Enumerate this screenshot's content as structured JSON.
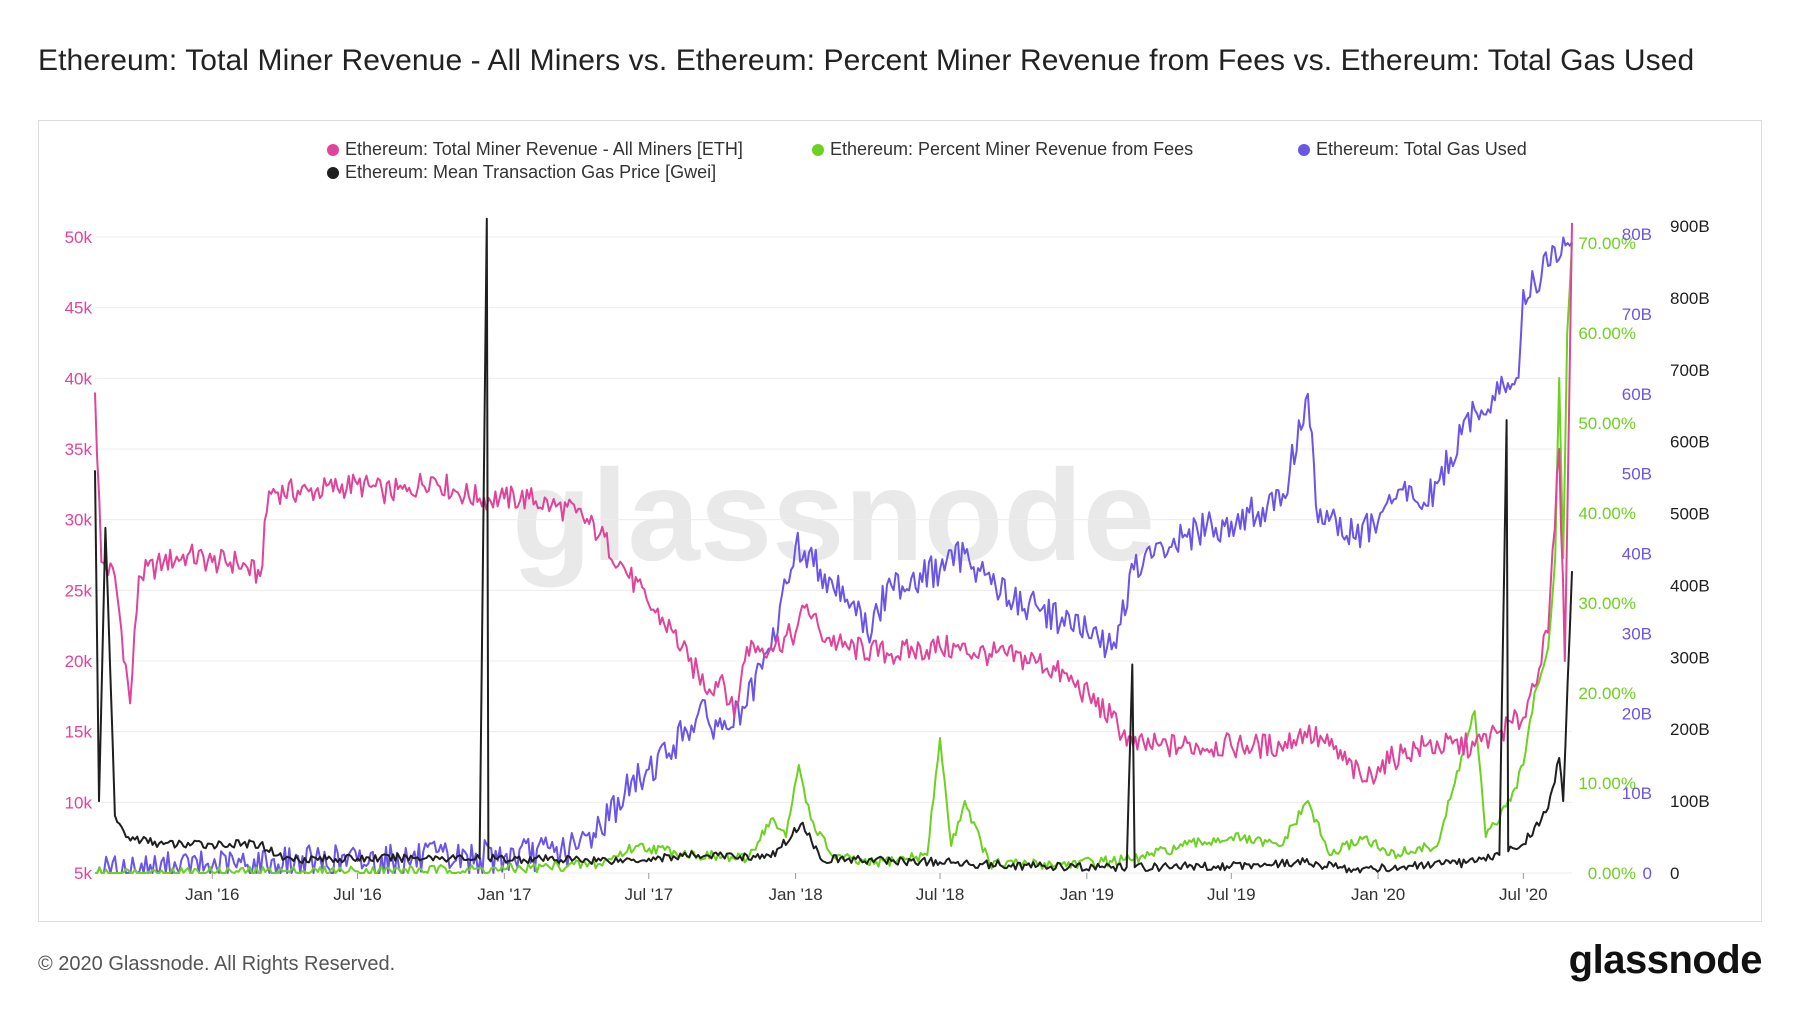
{
  "title": "Ethereum: Total Miner Revenue - All Miners vs. Ethereum: Percent Miner Revenue from Fees vs. Ethereum: Total Gas Used",
  "footer": {
    "copyright": "© 2020 Glassnode. All Rights Reserved.",
    "logo": "glassnode"
  },
  "watermark": "glassnode",
  "colors": {
    "revenue": "#e0449a",
    "fees": "#6cd11f",
    "gas_used": "#6a55e8",
    "gas_price": "#1f1f1f",
    "grid": "#ececec"
  },
  "chart_data": {
    "type": "line",
    "x_ticks": [
      "Jan '16",
      "Jul '16",
      "Jan '17",
      "Jul '17",
      "Jan '18",
      "Jul '18",
      "Jan '19",
      "Jul '19",
      "Jan '20",
      "Jul '20"
    ],
    "x_range": [
      "2015-08-07",
      "2020-08-31"
    ],
    "axes": {
      "revenue": {
        "ticks": [
          "5k",
          "10k",
          "15k",
          "20k",
          "25k",
          "30k",
          "35k",
          "40k",
          "45k",
          "50k"
        ],
        "ylim": [
          5000,
          50000
        ]
      },
      "fees": {
        "ticks": [
          "0.00%",
          "10.00%",
          "20.00%",
          "30.00%",
          "40.00%",
          "50.00%",
          "60.00%",
          "70.00%"
        ],
        "ylim": [
          0,
          70
        ]
      },
      "gas_used": {
        "ticks": [
          "0",
          "10B",
          "20B",
          "30B",
          "40B",
          "50B",
          "60B",
          "70B",
          "80B"
        ],
        "ylim": [
          0,
          80
        ]
      },
      "gas_price": {
        "ticks": [
          "0",
          "100B",
          "200B",
          "300B",
          "400B",
          "500B",
          "600B",
          "700B",
          "800B",
          "900B"
        ],
        "ylim": [
          0,
          900
        ]
      }
    },
    "series": [
      {
        "name": "Ethereum: Total Miner Revenue - All Miners [ETH]",
        "axis": "revenue",
        "points": [
          [
            "2015-08-07",
            39000
          ],
          [
            "2015-08-15",
            27000
          ],
          [
            "2015-09-01",
            26000
          ],
          [
            "2015-09-20",
            17000
          ],
          [
            "2015-10-01",
            26000
          ],
          [
            "2015-11-01",
            27000
          ],
          [
            "2015-12-01",
            27500
          ],
          [
            "2016-01-01",
            27000
          ],
          [
            "2016-02-01",
            27000
          ],
          [
            "2016-03-01",
            26000
          ],
          [
            "2016-03-12",
            32000
          ],
          [
            "2016-05-01",
            32000
          ],
          [
            "2016-07-01",
            32500
          ],
          [
            "2016-08-01",
            32000
          ],
          [
            "2016-09-01",
            32000
          ],
          [
            "2016-10-01",
            33000
          ],
          [
            "2016-11-01",
            32000
          ],
          [
            "2016-12-01",
            31500
          ],
          [
            "2017-01-01",
            31500
          ],
          [
            "2017-02-01",
            31500
          ],
          [
            "2017-03-01",
            31000
          ],
          [
            "2017-04-01",
            30500
          ],
          [
            "2017-05-01",
            29000
          ],
          [
            "2017-06-01",
            26500
          ],
          [
            "2017-07-01",
            24000
          ],
          [
            "2017-08-01",
            22000
          ],
          [
            "2017-08-20",
            20000
          ],
          [
            "2017-09-15",
            18000
          ],
          [
            "2017-10-01",
            19000
          ],
          [
            "2017-10-16",
            16000
          ],
          [
            "2017-11-01",
            21000
          ],
          [
            "2017-12-01",
            21000
          ],
          [
            "2018-01-01",
            22000
          ],
          [
            "2018-01-15",
            24000
          ],
          [
            "2018-02-01",
            22000
          ],
          [
            "2018-03-01",
            21000
          ],
          [
            "2018-05-01",
            20500
          ],
          [
            "2018-07-01",
            21000
          ],
          [
            "2018-09-01",
            20500
          ],
          [
            "2018-11-01",
            20000
          ],
          [
            "2018-12-15",
            18500
          ],
          [
            "2019-02-01",
            16000
          ],
          [
            "2019-02-28",
            14000
          ],
          [
            "2019-04-01",
            14000
          ],
          [
            "2019-07-01",
            14000
          ],
          [
            "2019-09-01",
            14000
          ],
          [
            "2019-10-01",
            15000
          ],
          [
            "2019-11-01",
            14000
          ],
          [
            "2019-12-15",
            11500
          ],
          [
            "2020-01-01",
            12500
          ],
          [
            "2020-02-01",
            13500
          ],
          [
            "2020-03-01",
            14000
          ],
          [
            "2020-05-01",
            14000
          ],
          [
            "2020-06-01",
            15000
          ],
          [
            "2020-07-01",
            16000
          ],
          [
            "2020-08-01",
            22000
          ],
          [
            "2020-08-15",
            35000
          ],
          [
            "2020-08-22",
            20000
          ],
          [
            "2020-08-31",
            51000
          ]
        ]
      },
      {
        "name": "Ethereum: Percent Miner Revenue from Fees",
        "axis": "fees",
        "points": [
          [
            "2015-08-07",
            0
          ],
          [
            "2016-01-01",
            0.1
          ],
          [
            "2016-07-01",
            0.2
          ],
          [
            "2017-01-01",
            0.4
          ],
          [
            "2017-05-01",
            1
          ],
          [
            "2017-06-15",
            3
          ],
          [
            "2017-09-01",
            2
          ],
          [
            "2017-11-01",
            1.5
          ],
          [
            "2017-12-01",
            6
          ],
          [
            "2017-12-20",
            4
          ],
          [
            "2018-01-05",
            12
          ],
          [
            "2018-01-20",
            6
          ],
          [
            "2018-02-15",
            2
          ],
          [
            "2018-04-01",
            1
          ],
          [
            "2018-06-15",
            2
          ],
          [
            "2018-07-01",
            15
          ],
          [
            "2018-07-15",
            3
          ],
          [
            "2018-08-01",
            8
          ],
          [
            "2018-09-01",
            1
          ],
          [
            "2018-12-01",
            1
          ],
          [
            "2019-03-01",
            1.5
          ],
          [
            "2019-05-01",
            3
          ],
          [
            "2019-07-01",
            4
          ],
          [
            "2019-09-01",
            3
          ],
          [
            "2019-10-05",
            8
          ],
          [
            "2019-11-01",
            2
          ],
          [
            "2019-12-15",
            4
          ],
          [
            "2020-01-15",
            2
          ],
          [
            "2020-03-15",
            3
          ],
          [
            "2020-05-01",
            18
          ],
          [
            "2020-05-15",
            4
          ],
          [
            "2020-06-15",
            8
          ],
          [
            "2020-07-01",
            12
          ],
          [
            "2020-07-15",
            20
          ],
          [
            "2020-08-01",
            25
          ],
          [
            "2020-08-10",
            35
          ],
          [
            "2020-08-15",
            55
          ],
          [
            "2020-08-20",
            35
          ],
          [
            "2020-08-25",
            60
          ],
          [
            "2020-08-31",
            70
          ]
        ]
      },
      {
        "name": "Ethereum: Total Gas Used",
        "axis": "gas_used",
        "points": [
          [
            "2015-08-07",
            0
          ],
          [
            "2016-01-01",
            0.8
          ],
          [
            "2016-07-01",
            1.5
          ],
          [
            "2017-01-01",
            2
          ],
          [
            "2017-04-01",
            3
          ],
          [
            "2017-05-01",
            6
          ],
          [
            "2017-06-01",
            10
          ],
          [
            "2017-07-01",
            13
          ],
          [
            "2017-08-01",
            16
          ],
          [
            "2017-09-01",
            20
          ],
          [
            "2017-10-01",
            18
          ],
          [
            "2017-11-01",
            21
          ],
          [
            "2017-12-01",
            28
          ],
          [
            "2018-01-01",
            41
          ],
          [
            "2018-02-01",
            38
          ],
          [
            "2018-03-15",
            34
          ],
          [
            "2018-04-01",
            30
          ],
          [
            "2018-05-01",
            36
          ],
          [
            "2018-07-01",
            38
          ],
          [
            "2018-08-01",
            40
          ],
          [
            "2018-10-01",
            34
          ],
          [
            "2018-12-01",
            32
          ],
          [
            "2019-02-01",
            28
          ],
          [
            "2019-03-01",
            38
          ],
          [
            "2019-05-01",
            42
          ],
          [
            "2019-07-01",
            44
          ],
          [
            "2019-09-01",
            46
          ],
          [
            "2019-10-05",
            60
          ],
          [
            "2019-10-15",
            46
          ],
          [
            "2019-12-01",
            42
          ],
          [
            "2020-01-01",
            44
          ],
          [
            "2020-02-01",
            48
          ],
          [
            "2020-03-01",
            46
          ],
          [
            "2020-04-01",
            52
          ],
          [
            "2020-05-01",
            58
          ],
          [
            "2020-06-01",
            60
          ],
          [
            "2020-06-25",
            62
          ],
          [
            "2020-07-01",
            73
          ],
          [
            "2020-08-01",
            76
          ],
          [
            "2020-08-31",
            79
          ]
        ]
      },
      {
        "name": "Ethereum: Mean Transaction Gas Price [Gwei]",
        "axis": "gas_price",
        "points": [
          [
            "2015-08-07",
            560
          ],
          [
            "2015-08-12",
            100
          ],
          [
            "2015-08-20",
            480
          ],
          [
            "2015-09-01",
            80
          ],
          [
            "2015-09-15",
            50
          ],
          [
            "2015-11-01",
            40
          ],
          [
            "2016-01-01",
            40
          ],
          [
            "2016-03-01",
            40
          ],
          [
            "2016-04-01",
            20
          ],
          [
            "2016-07-01",
            20
          ],
          [
            "2016-10-01",
            22
          ],
          [
            "2016-12-01",
            20
          ],
          [
            "2016-12-10",
            910
          ],
          [
            "2016-12-12",
            20
          ],
          [
            "2017-06-01",
            18
          ],
          [
            "2017-07-01",
            20
          ],
          [
            "2017-09-01",
            25
          ],
          [
            "2017-12-01",
            22
          ],
          [
            "2018-01-10",
            70
          ],
          [
            "2018-02-01",
            20
          ],
          [
            "2018-07-01",
            15
          ],
          [
            "2018-12-01",
            8
          ],
          [
            "2019-02-20",
            8
          ],
          [
            "2019-02-27",
            290
          ],
          [
            "2019-03-02",
            8
          ],
          [
            "2019-07-01",
            10
          ],
          [
            "2019-10-01",
            15
          ],
          [
            "2019-12-01",
            5
          ],
          [
            "2020-03-01",
            10
          ],
          [
            "2020-05-01",
            15
          ],
          [
            "2020-06-01",
            25
          ],
          [
            "2020-06-10",
            630
          ],
          [
            "2020-06-12",
            30
          ],
          [
            "2020-07-01",
            40
          ],
          [
            "2020-08-01",
            90
          ],
          [
            "2020-08-15",
            160
          ],
          [
            "2020-08-20",
            100
          ],
          [
            "2020-08-31",
            420
          ]
        ]
      }
    ]
  }
}
